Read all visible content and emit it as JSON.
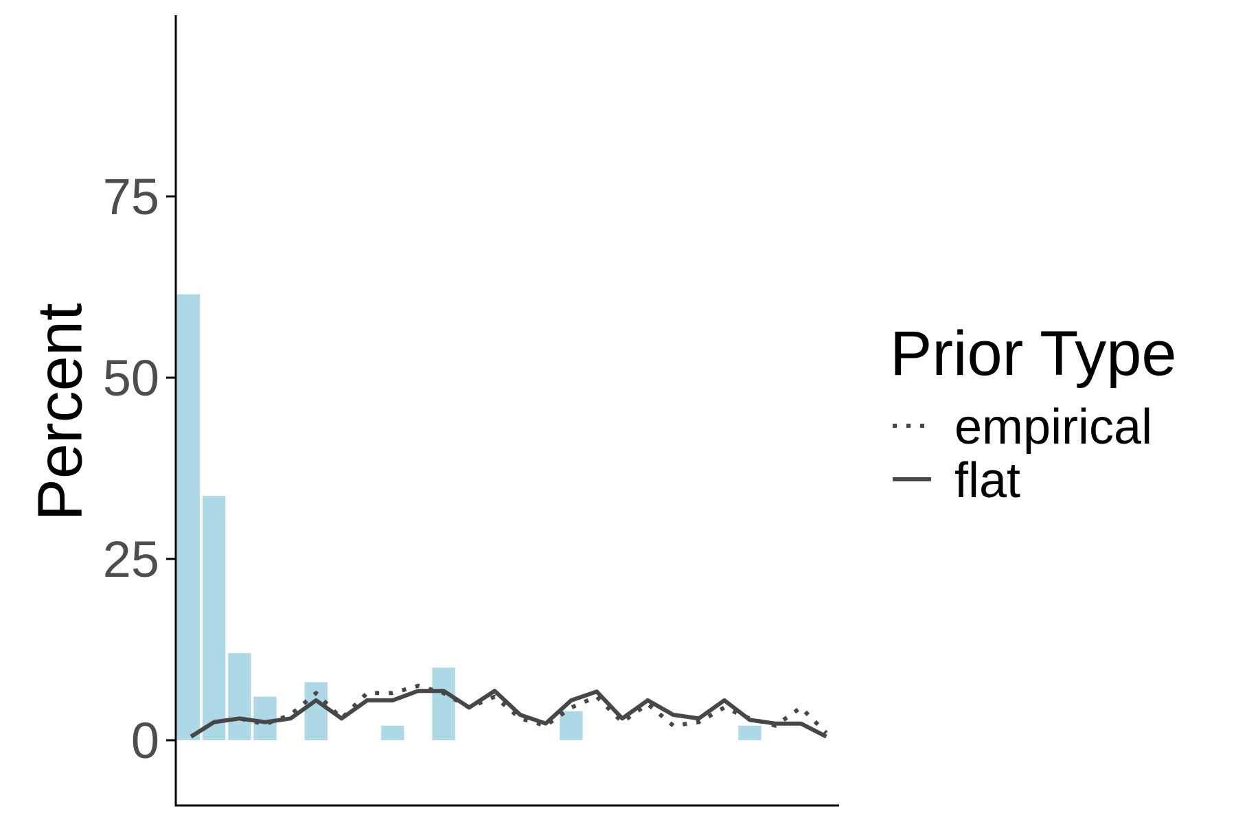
{
  "chart_data": {
    "type": "bar",
    "title": "",
    "xlabel": "",
    "ylabel": "Percent",
    "ylim": [
      -9,
      100
    ],
    "xlim": [
      0.5,
      26.5
    ],
    "yticks": [
      0,
      25,
      50,
      75
    ],
    "grid": false,
    "bar_color": "#add8e6",
    "line_color": "#474747",
    "bars": [
      {
        "x": 1,
        "value": 61.5
      },
      {
        "x": 2,
        "value": 33.7
      },
      {
        "x": 3,
        "value": 12.0
      },
      {
        "x": 4,
        "value": 6.0
      },
      {
        "x": 6,
        "value": 8.0
      },
      {
        "x": 9,
        "value": 2.0
      },
      {
        "x": 11,
        "value": 10.0
      },
      {
        "x": 16,
        "value": 4.0
      },
      {
        "x": 23,
        "value": 2.0
      }
    ],
    "series": [
      {
        "name": "empirical",
        "linestyle": "dotted",
        "x": [
          1.1,
          2,
          3,
          4,
          5,
          6,
          7,
          8,
          9,
          10,
          11,
          12,
          13,
          14,
          15,
          16,
          17,
          18,
          19,
          20,
          21,
          22,
          23,
          24,
          25,
          26
        ],
        "values": [
          0.5,
          2.5,
          3.0,
          2.2,
          3.5,
          6.5,
          3.0,
          6.5,
          6.5,
          7.5,
          6.5,
          4.5,
          6.0,
          3.0,
          2.0,
          4.5,
          6.0,
          2.5,
          5.0,
          2.0,
          2.5,
          4.5,
          3.0,
          2.0,
          4.5,
          1.0
        ]
      },
      {
        "name": "flat",
        "linestyle": "solid",
        "x": [
          1.1,
          2,
          3,
          4,
          5,
          6,
          7,
          8,
          9,
          10,
          11,
          12,
          13,
          14,
          15,
          16,
          17,
          18,
          19,
          20,
          21,
          22,
          23,
          24,
          25,
          26
        ],
        "values": [
          0.5,
          2.5,
          3.0,
          2.5,
          3.0,
          5.5,
          3.0,
          5.5,
          5.5,
          6.8,
          6.8,
          4.5,
          6.8,
          3.5,
          2.3,
          5.5,
          6.7,
          3.0,
          5.5,
          3.5,
          3.0,
          5.5,
          2.8,
          2.3,
          2.3,
          0.5
        ]
      }
    ],
    "legend": {
      "title": "Prior Type",
      "position": "right",
      "entries": [
        {
          "label": "empirical",
          "linestyle": "dotted"
        },
        {
          "label": "flat",
          "linestyle": "solid"
        }
      ]
    }
  }
}
